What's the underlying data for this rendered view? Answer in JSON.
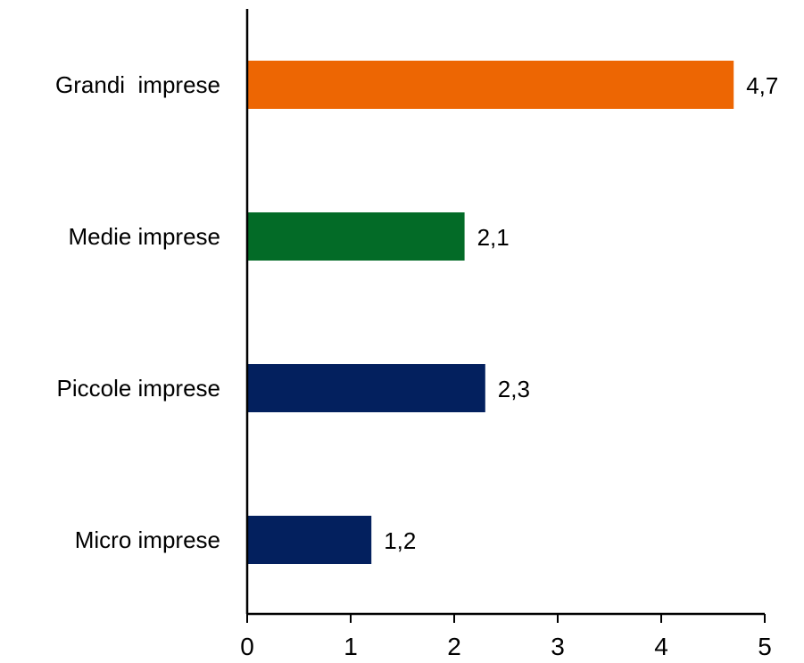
{
  "chart_data": {
    "type": "bar",
    "orientation": "horizontal",
    "categories": [
      "Grandi  imprese",
      "Medie imprese",
      "Piccole imprese",
      "Micro imprese"
    ],
    "values": [
      4.7,
      2.1,
      2.3,
      1.2
    ],
    "value_labels": [
      "4,7",
      "2,1",
      "2,3",
      "1,2"
    ],
    "colors": [
      "#ED6603",
      "#036B27",
      "#03205E",
      "#03205E"
    ],
    "xlim": [
      0,
      5
    ],
    "xticks": [
      0,
      1,
      2,
      3,
      4,
      5
    ],
    "xtick_labels": [
      "0",
      "1",
      "2",
      "3",
      "4",
      "5"
    ],
    "grid": false,
    "legend": "none"
  }
}
